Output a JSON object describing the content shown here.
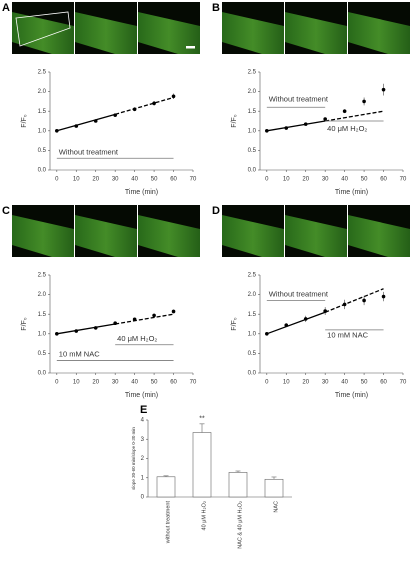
{
  "chart_data": [
    {
      "type": "line",
      "label": "A",
      "xlabel": "Time (min)",
      "ylabel": "F/F₀",
      "x": [
        0,
        10,
        20,
        30,
        40,
        50,
        60
      ],
      "values": [
        1.0,
        1.12,
        1.25,
        1.4,
        1.55,
        1.7,
        1.88
      ],
      "errors": [
        0.02,
        0.02,
        0.03,
        0.04,
        0.05,
        0.06,
        0.07
      ],
      "fit_x": [
        0,
        30,
        60
      ],
      "fit_values": [
        1.0,
        1.42,
        1.85
      ],
      "color": "#000000",
      "xlim": [
        -3.5,
        70
      ],
      "xticks": [
        0,
        10,
        20,
        30,
        40,
        50,
        60,
        70
      ],
      "ylim": [
        0,
        2.5
      ],
      "yticks": [
        {
          "value": 0,
          "label": "0.0"
        },
        0.5,
        {
          "value": 1,
          "label": "1.0"
        },
        1.5,
        {
          "value": 2,
          "label": "2.0"
        },
        2.5
      ],
      "annotations": [
        {
          "text": "Without treatment",
          "x": [
            0,
            60
          ]
        }
      ]
    },
    {
      "type": "line",
      "label": "B",
      "xlabel": "Time (min)",
      "ylabel": "F/F₀",
      "x": [
        0,
        10,
        20,
        30,
        40,
        50,
        60
      ],
      "values": [
        1.0,
        1.07,
        1.17,
        1.3,
        1.5,
        1.75,
        2.05
      ],
      "errors": [
        0.02,
        0.02,
        0.02,
        0.03,
        0.05,
        0.1,
        0.15
      ],
      "fit_x": [
        0,
        30,
        60
      ],
      "fit_values": [
        1.0,
        1.25,
        1.5
      ],
      "color": "#000000",
      "xlim": [
        -3.5,
        70
      ],
      "xticks": [
        0,
        10,
        20,
        30,
        40,
        50,
        60,
        70
      ],
      "ylim": [
        0,
        2.5
      ],
      "yticks": [
        {
          "value": 0,
          "label": "0.0"
        },
        0.5,
        {
          "value": 1,
          "label": "1.0"
        },
        1.5,
        {
          "value": 2,
          "label": "2.0"
        },
        2.5
      ],
      "annotations": [
        {
          "text": "Without treatment",
          "x": [
            0,
            30
          ]
        },
        {
          "text": "40 μM H₂O₂",
          "x": [
            30,
            60
          ]
        }
      ]
    },
    {
      "type": "line",
      "label": "C",
      "xlabel": "Time (min)",
      "ylabel": "F/F₀",
      "x": [
        0,
        10,
        20,
        30,
        40,
        50,
        60
      ],
      "values": [
        1.0,
        1.07,
        1.15,
        1.27,
        1.37,
        1.47,
        1.57
      ],
      "errors": [
        0.02,
        0.02,
        0.02,
        0.03,
        0.03,
        0.04,
        0.05
      ],
      "fit_x": [
        0,
        30,
        60
      ],
      "fit_values": [
        1.0,
        1.25,
        1.5
      ],
      "color": "#000000",
      "xlim": [
        -3.5,
        70
      ],
      "xticks": [
        0,
        10,
        20,
        30,
        40,
        50,
        60,
        70
      ],
      "ylim": [
        0,
        2.5
      ],
      "yticks": [
        {
          "value": 0,
          "label": "0.0"
        },
        0.5,
        {
          "value": 1,
          "label": "1.0"
        },
        1.5,
        {
          "value": 2,
          "label": "2.0"
        },
        2.5
      ],
      "annotations": [
        {
          "text": "40 μM H₂O₂",
          "x": [
            30,
            60
          ]
        },
        {
          "text": "10 mM NAC",
          "x": [
            0,
            60
          ]
        }
      ]
    },
    {
      "type": "line",
      "label": "D",
      "xlabel": "Time (min)",
      "ylabel": "F/F₀",
      "x": [
        0,
        10,
        20,
        30,
        40,
        50,
        60
      ],
      "values": [
        1.0,
        1.22,
        1.38,
        1.58,
        1.75,
        1.85,
        1.95
      ],
      "errors": [
        0.02,
        0.05,
        0.08,
        0.1,
        0.12,
        0.12,
        0.12
      ],
      "fit_x": [
        0,
        30,
        60
      ],
      "fit_values": [
        1.0,
        1.55,
        2.15
      ],
      "color": "#000000",
      "xlim": [
        -3.5,
        70
      ],
      "xticks": [
        0,
        10,
        20,
        30,
        40,
        50,
        60,
        70
      ],
      "ylim": [
        0,
        2.5
      ],
      "yticks": [
        {
          "value": 0,
          "label": "0.0"
        },
        0.5,
        {
          "value": 1,
          "label": "1.0"
        },
        1.5,
        {
          "value": 2,
          "label": "2.0"
        },
        2.5
      ],
      "annotations": [
        {
          "text": "Without treatment",
          "x": [
            0,
            30
          ]
        },
        {
          "text": "10 mM NAC",
          "x": [
            30,
            60
          ]
        }
      ]
    },
    {
      "type": "bar",
      "label": "E",
      "ylabel": "slope 30-60 min/slope 0-30 min",
      "categories": [
        "without treatment",
        "40 μM H₂O₂",
        "NAC & 40 μM H₂O₂",
        "NAC"
      ],
      "values": [
        1.05,
        3.35,
        1.28,
        0.92
      ],
      "errors": [
        0.05,
        0.45,
        0.07,
        0.12
      ],
      "value_annotations": [
        null,
        "**",
        null,
        null
      ],
      "color": "#ffffff",
      "ylim": [
        0,
        4
      ],
      "yticks": [
        0,
        1,
        2,
        3,
        4
      ]
    }
  ]
}
